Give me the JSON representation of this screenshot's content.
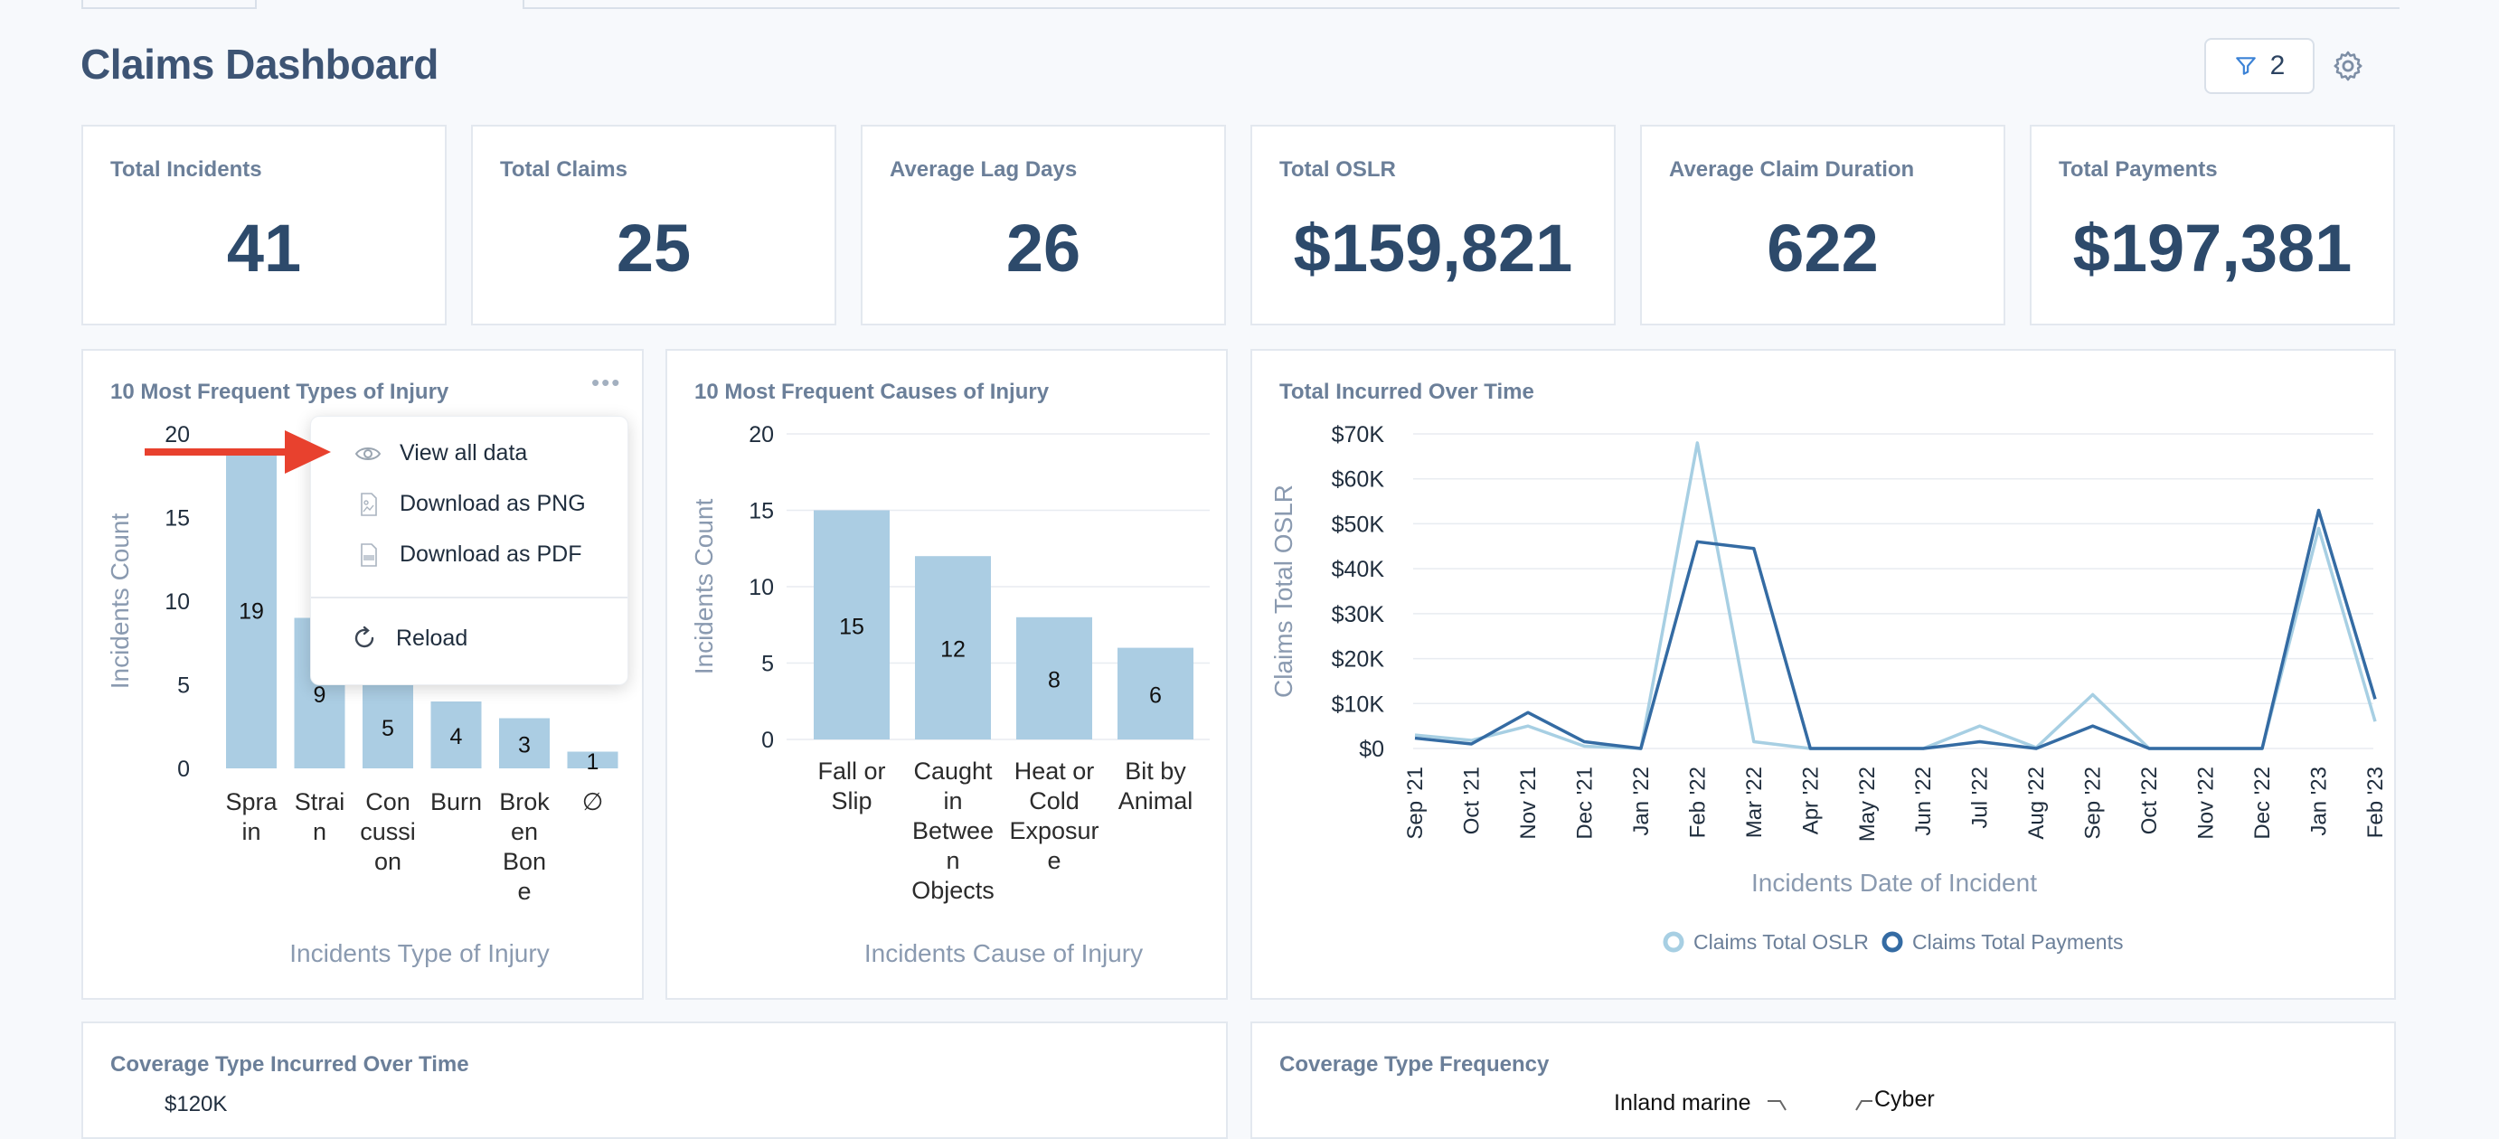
{
  "page": {
    "title": "Claims Dashboard",
    "filter_count": "2"
  },
  "kpis": [
    {
      "label": "Total Incidents",
      "value": "41"
    },
    {
      "label": "Total Claims",
      "value": "25"
    },
    {
      "label": "Average Lag Days",
      "value": "26"
    },
    {
      "label": "Total OSLR",
      "value": "$159,821"
    },
    {
      "label": "Average Claim Duration",
      "value": "622"
    },
    {
      "label": "Total Payments",
      "value": "$197,381"
    }
  ],
  "cards": {
    "injury_type": {
      "title": "10 Most Frequent Types of Injury"
    },
    "injury_cause": {
      "title": "10 Most Frequent Causes of Injury"
    },
    "incurred": {
      "title": "Total Incurred Over Time"
    },
    "coverage_over_time": {
      "title": "Coverage Type Incurred Over Time",
      "ytick_top": "$120K"
    },
    "coverage_freq": {
      "title": "Coverage Type Frequency",
      "labels": [
        "Inland marine",
        "Cyber"
      ]
    }
  },
  "menu": {
    "items": [
      "View all data",
      "Download as PNG",
      "Download as PDF"
    ],
    "reload": "Reload"
  },
  "colors": {
    "bar": "#abcde3",
    "line_light": "#a7cfe3",
    "line_dark": "#346ba3",
    "arrow": "#e8412e"
  },
  "chart_data": [
    {
      "type": "bar",
      "title": "10 Most Frequent Types of Injury",
      "categories": [
        [
          "Spra",
          "in"
        ],
        [
          "Strai",
          "n"
        ],
        [
          "Con",
          "cussi",
          "on"
        ],
        [
          "Burn"
        ],
        [
          "Brok",
          "en",
          "Bon",
          "e"
        ],
        [
          "∅"
        ]
      ],
      "values": [
        19,
        9,
        5,
        4,
        3,
        1
      ],
      "xlabel": "Incidents Type of Injury",
      "ylabel": "Incidents Count",
      "ylim": [
        0,
        20
      ],
      "yticks": [
        0,
        5,
        10,
        15,
        20
      ]
    },
    {
      "type": "bar",
      "title": "10 Most Frequent Causes of Injury",
      "categories": [
        [
          "Fall or",
          "Slip"
        ],
        [
          "Caught",
          "in",
          "Betwee",
          "n",
          "Objects"
        ],
        [
          "Heat or",
          "Cold",
          "Exposur",
          "e"
        ],
        [
          "Bit by",
          "Animal"
        ]
      ],
      "values": [
        15,
        12,
        8,
        6
      ],
      "xlabel": "Incidents Cause of Injury",
      "ylabel": "Incidents Count",
      "ylim": [
        0,
        20
      ],
      "yticks": [
        0,
        5,
        10,
        15,
        20
      ]
    },
    {
      "type": "line",
      "title": "Total Incurred Over Time",
      "x": [
        "Sep '21",
        "Oct '21",
        "Nov '21",
        "Dec '21",
        "Jan '22",
        "Feb '22",
        "Mar '22",
        "Apr '22",
        "May '22",
        "Jun '22",
        "Jul '22",
        "Aug '22",
        "Sep '22",
        "Oct '22",
        "Nov '22",
        "Dec '22",
        "Jan '23",
        "Feb '23"
      ],
      "series": [
        {
          "name": "Claims Total OSLR",
          "values": [
            3000,
            1800,
            5000,
            500,
            0,
            68000,
            1500,
            0,
            0,
            0,
            5000,
            200,
            12000,
            0,
            0,
            0,
            49000,
            6000
          ]
        },
        {
          "name": "Claims Total Payments",
          "values": [
            2300,
            1000,
            8000,
            1500,
            0,
            46000,
            44500,
            0,
            0,
            0,
            1500,
            0,
            5000,
            0,
            0,
            0,
            53000,
            11000
          ]
        }
      ],
      "xlabel": "Incidents Date of Incident",
      "ylabel": "Claims Total OSLR",
      "ylim": [
        0,
        70000
      ],
      "yticks": [
        "$0",
        "$10K",
        "$20K",
        "$30K",
        "$40K",
        "$50K",
        "$60K",
        "$70K"
      ]
    }
  ]
}
